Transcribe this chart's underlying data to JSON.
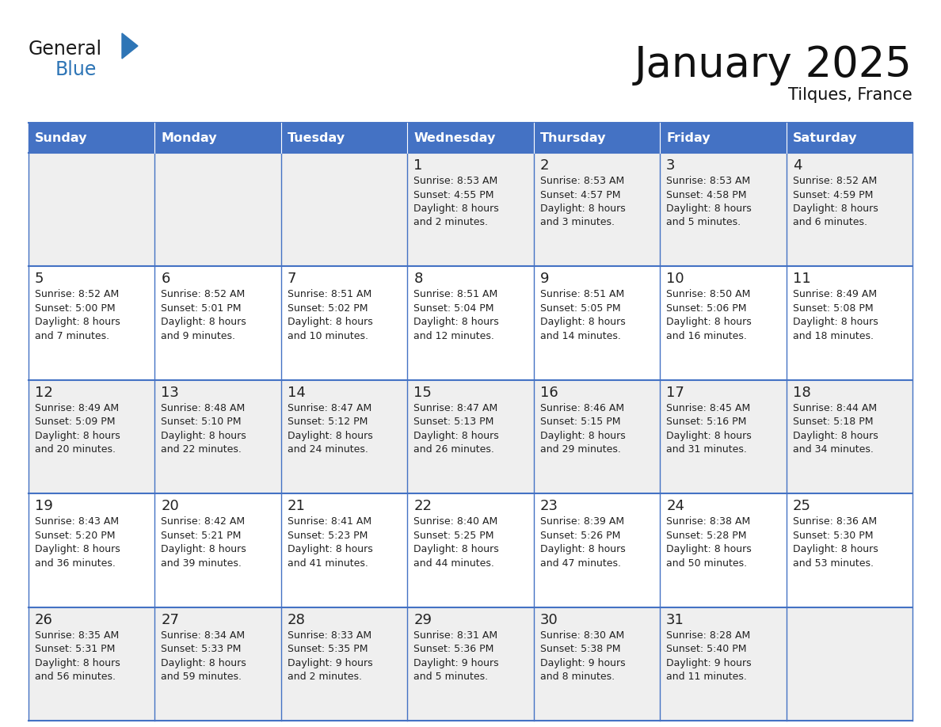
{
  "title": "January 2025",
  "subtitle": "Tilques, France",
  "header_bg": "#4472C4",
  "header_text_color": "#FFFFFF",
  "cell_bg_even": "#EFEFEF",
  "cell_bg_odd": "#FFFFFF",
  "grid_color": "#4472C4",
  "text_color": "#222222",
  "days_of_week": [
    "Sunday",
    "Monday",
    "Tuesday",
    "Wednesday",
    "Thursday",
    "Friday",
    "Saturday"
  ],
  "calendar_data": [
    [
      {
        "day": "",
        "sunrise": "",
        "sunset": "",
        "daylight": ""
      },
      {
        "day": "",
        "sunrise": "",
        "sunset": "",
        "daylight": ""
      },
      {
        "day": "",
        "sunrise": "",
        "sunset": "",
        "daylight": ""
      },
      {
        "day": "1",
        "sunrise": "Sunrise: 8:53 AM",
        "sunset": "Sunset: 4:55 PM",
        "daylight": "Daylight: 8 hours\nand 2 minutes."
      },
      {
        "day": "2",
        "sunrise": "Sunrise: 8:53 AM",
        "sunset": "Sunset: 4:57 PM",
        "daylight": "Daylight: 8 hours\nand 3 minutes."
      },
      {
        "day": "3",
        "sunrise": "Sunrise: 8:53 AM",
        "sunset": "Sunset: 4:58 PM",
        "daylight": "Daylight: 8 hours\nand 5 minutes."
      },
      {
        "day": "4",
        "sunrise": "Sunrise: 8:52 AM",
        "sunset": "Sunset: 4:59 PM",
        "daylight": "Daylight: 8 hours\nand 6 minutes."
      }
    ],
    [
      {
        "day": "5",
        "sunrise": "Sunrise: 8:52 AM",
        "sunset": "Sunset: 5:00 PM",
        "daylight": "Daylight: 8 hours\nand 7 minutes."
      },
      {
        "day": "6",
        "sunrise": "Sunrise: 8:52 AM",
        "sunset": "Sunset: 5:01 PM",
        "daylight": "Daylight: 8 hours\nand 9 minutes."
      },
      {
        "day": "7",
        "sunrise": "Sunrise: 8:51 AM",
        "sunset": "Sunset: 5:02 PM",
        "daylight": "Daylight: 8 hours\nand 10 minutes."
      },
      {
        "day": "8",
        "sunrise": "Sunrise: 8:51 AM",
        "sunset": "Sunset: 5:04 PM",
        "daylight": "Daylight: 8 hours\nand 12 minutes."
      },
      {
        "day": "9",
        "sunrise": "Sunrise: 8:51 AM",
        "sunset": "Sunset: 5:05 PM",
        "daylight": "Daylight: 8 hours\nand 14 minutes."
      },
      {
        "day": "10",
        "sunrise": "Sunrise: 8:50 AM",
        "sunset": "Sunset: 5:06 PM",
        "daylight": "Daylight: 8 hours\nand 16 minutes."
      },
      {
        "day": "11",
        "sunrise": "Sunrise: 8:49 AM",
        "sunset": "Sunset: 5:08 PM",
        "daylight": "Daylight: 8 hours\nand 18 minutes."
      }
    ],
    [
      {
        "day": "12",
        "sunrise": "Sunrise: 8:49 AM",
        "sunset": "Sunset: 5:09 PM",
        "daylight": "Daylight: 8 hours\nand 20 minutes."
      },
      {
        "day": "13",
        "sunrise": "Sunrise: 8:48 AM",
        "sunset": "Sunset: 5:10 PM",
        "daylight": "Daylight: 8 hours\nand 22 minutes."
      },
      {
        "day": "14",
        "sunrise": "Sunrise: 8:47 AM",
        "sunset": "Sunset: 5:12 PM",
        "daylight": "Daylight: 8 hours\nand 24 minutes."
      },
      {
        "day": "15",
        "sunrise": "Sunrise: 8:47 AM",
        "sunset": "Sunset: 5:13 PM",
        "daylight": "Daylight: 8 hours\nand 26 minutes."
      },
      {
        "day": "16",
        "sunrise": "Sunrise: 8:46 AM",
        "sunset": "Sunset: 5:15 PM",
        "daylight": "Daylight: 8 hours\nand 29 minutes."
      },
      {
        "day": "17",
        "sunrise": "Sunrise: 8:45 AM",
        "sunset": "Sunset: 5:16 PM",
        "daylight": "Daylight: 8 hours\nand 31 minutes."
      },
      {
        "day": "18",
        "sunrise": "Sunrise: 8:44 AM",
        "sunset": "Sunset: 5:18 PM",
        "daylight": "Daylight: 8 hours\nand 34 minutes."
      }
    ],
    [
      {
        "day": "19",
        "sunrise": "Sunrise: 8:43 AM",
        "sunset": "Sunset: 5:20 PM",
        "daylight": "Daylight: 8 hours\nand 36 minutes."
      },
      {
        "day": "20",
        "sunrise": "Sunrise: 8:42 AM",
        "sunset": "Sunset: 5:21 PM",
        "daylight": "Daylight: 8 hours\nand 39 minutes."
      },
      {
        "day": "21",
        "sunrise": "Sunrise: 8:41 AM",
        "sunset": "Sunset: 5:23 PM",
        "daylight": "Daylight: 8 hours\nand 41 minutes."
      },
      {
        "day": "22",
        "sunrise": "Sunrise: 8:40 AM",
        "sunset": "Sunset: 5:25 PM",
        "daylight": "Daylight: 8 hours\nand 44 minutes."
      },
      {
        "day": "23",
        "sunrise": "Sunrise: 8:39 AM",
        "sunset": "Sunset: 5:26 PM",
        "daylight": "Daylight: 8 hours\nand 47 minutes."
      },
      {
        "day": "24",
        "sunrise": "Sunrise: 8:38 AM",
        "sunset": "Sunset: 5:28 PM",
        "daylight": "Daylight: 8 hours\nand 50 minutes."
      },
      {
        "day": "25",
        "sunrise": "Sunrise: 8:36 AM",
        "sunset": "Sunset: 5:30 PM",
        "daylight": "Daylight: 8 hours\nand 53 minutes."
      }
    ],
    [
      {
        "day": "26",
        "sunrise": "Sunrise: 8:35 AM",
        "sunset": "Sunset: 5:31 PM",
        "daylight": "Daylight: 8 hours\nand 56 minutes."
      },
      {
        "day": "27",
        "sunrise": "Sunrise: 8:34 AM",
        "sunset": "Sunset: 5:33 PM",
        "daylight": "Daylight: 8 hours\nand 59 minutes."
      },
      {
        "day": "28",
        "sunrise": "Sunrise: 8:33 AM",
        "sunset": "Sunset: 5:35 PM",
        "daylight": "Daylight: 9 hours\nand 2 minutes."
      },
      {
        "day": "29",
        "sunrise": "Sunrise: 8:31 AM",
        "sunset": "Sunset: 5:36 PM",
        "daylight": "Daylight: 9 hours\nand 5 minutes."
      },
      {
        "day": "30",
        "sunrise": "Sunrise: 8:30 AM",
        "sunset": "Sunset: 5:38 PM",
        "daylight": "Daylight: 9 hours\nand 8 minutes."
      },
      {
        "day": "31",
        "sunrise": "Sunrise: 8:28 AM",
        "sunset": "Sunset: 5:40 PM",
        "daylight": "Daylight: 9 hours\nand 11 minutes."
      },
      {
        "day": "",
        "sunrise": "",
        "sunset": "",
        "daylight": ""
      }
    ]
  ],
  "logo_general_color": "#1a1a1a",
  "logo_blue_color": "#2e75b6",
  "logo_triangle_color": "#2e75b6"
}
